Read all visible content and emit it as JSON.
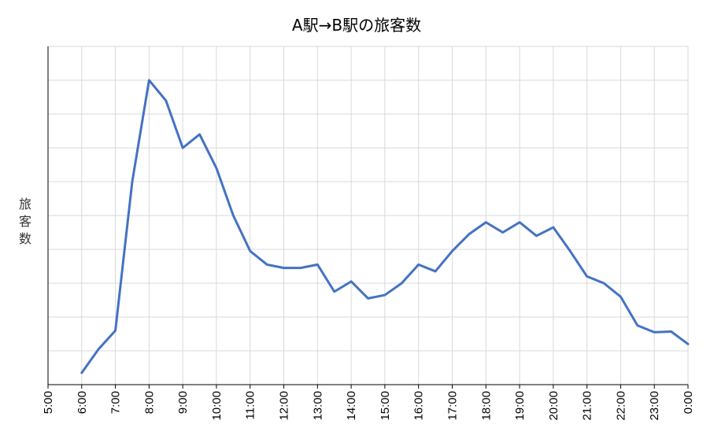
{
  "chart_data": {
    "type": "line",
    "title": "A駅→B駅の旅客数",
    "xlabel": "",
    "ylabel": "旅客数",
    "x_tick_labels": [
      "5:00",
      "6:00",
      "7:00",
      "8:00",
      "9:00",
      "10:00",
      "11:00",
      "12:00",
      "13:00",
      "14:00",
      "15:00",
      "16:00",
      "17:00",
      "18:00",
      "19:00",
      "20:00",
      "21:00",
      "22:00",
      "23:00",
      "0:00"
    ],
    "y_tick_labels": [],
    "ylim": [
      0,
      10
    ],
    "grid": true,
    "legend": "none",
    "line_color": "#4472C4",
    "series": [
      {
        "x": [
          "6:00",
          "6:30",
          "7:00",
          "7:30",
          "8:00",
          "8:30",
          "9:00",
          "9:30",
          "10:00",
          "10:30",
          "11:00",
          "11:30",
          "12:00",
          "12:30",
          "13:00",
          "13:30",
          "14:00",
          "14:30",
          "15:00",
          "15:30",
          "16:00",
          "16:30",
          "17:00",
          "17:30",
          "18:00",
          "18:30",
          "19:00",
          "19:30",
          "20:00",
          "20:30",
          "21:00",
          "21:30",
          "22:00",
          "22:30",
          "23:00",
          "23:30",
          "0:00"
        ],
        "values": [
          0.35,
          1.05,
          1.6,
          6.0,
          9.0,
          8.4,
          7.0,
          7.4,
          6.4,
          5.0,
          3.95,
          3.55,
          3.45,
          3.45,
          3.55,
          2.75,
          3.05,
          2.55,
          2.65,
          3.0,
          3.55,
          3.35,
          3.95,
          4.45,
          4.8,
          4.5,
          4.8,
          4.4,
          4.65,
          3.95,
          3.2,
          3.0,
          2.6,
          1.75,
          1.55,
          1.57,
          1.2
        ]
      }
    ]
  }
}
